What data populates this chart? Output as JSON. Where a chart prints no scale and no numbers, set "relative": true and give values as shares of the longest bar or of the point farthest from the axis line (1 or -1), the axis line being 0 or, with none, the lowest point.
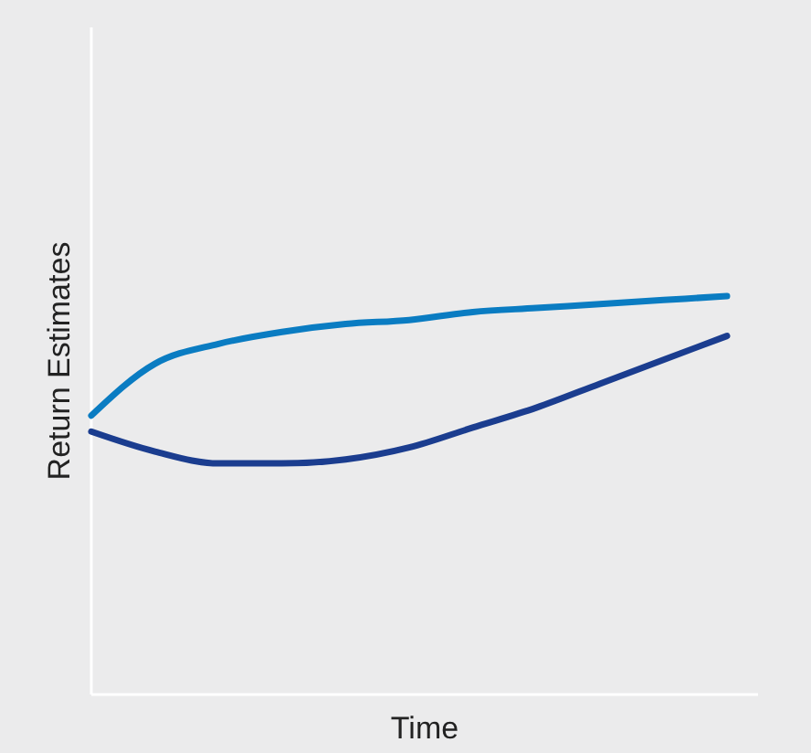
{
  "chart_data": {
    "type": "line",
    "relative": true,
    "xlabel": "Time",
    "ylabel": "Return Estimates",
    "categories": [
      null,
      null,
      null,
      null,
      null,
      null,
      null,
      null,
      null,
      null,
      null
    ],
    "series": [
      {
        "color": "#0a7cc2",
        "values": [
          0.7,
          0.83,
          0.88,
          0.91,
          0.93,
          0.94,
          0.96,
          0.97,
          0.98,
          0.99,
          1
        ]
      },
      {
        "color": "#1b3d8f",
        "values": [
          0.66,
          0.61,
          0.58,
          0.58,
          0.59,
          0.62,
          0.67,
          0.72,
          0.78,
          0.84,
          0.9
        ]
      }
    ]
  }
}
